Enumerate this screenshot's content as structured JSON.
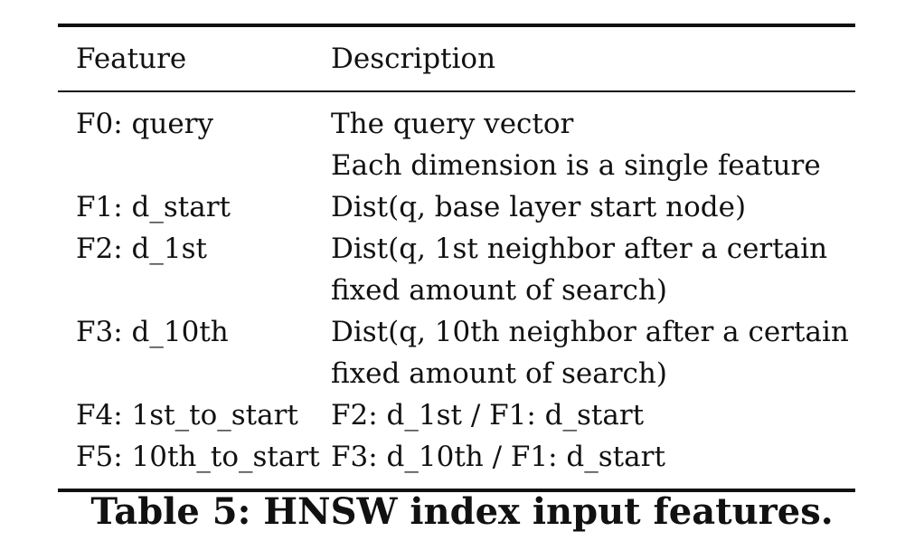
{
  "table": {
    "headers": {
      "feature": "Feature",
      "description": "Description"
    },
    "rows": [
      {
        "feature": "F0: query",
        "description": [
          "The query vector",
          "Each dimension is a single feature"
        ]
      },
      {
        "feature": "F1: d_start",
        "description": [
          "Dist(q, base layer start node)"
        ]
      },
      {
        "feature": "F2: d_1st",
        "description": [
          "Dist(q, 1st neighbor after a certain",
          "fixed amount of search)"
        ]
      },
      {
        "feature": "F3: d_10th",
        "description": [
          "Dist(q, 10th neighbor after a certain",
          "fixed amount of search)"
        ]
      },
      {
        "feature": "F4: 1st_to_start",
        "description": [
          "F2: d_1st / F1: d_start"
        ]
      },
      {
        "feature": "F5: 10th_to_start",
        "description": [
          "F3: d_10th / F1: d_start"
        ]
      }
    ]
  },
  "caption": "Table 5: HNSW index input features."
}
